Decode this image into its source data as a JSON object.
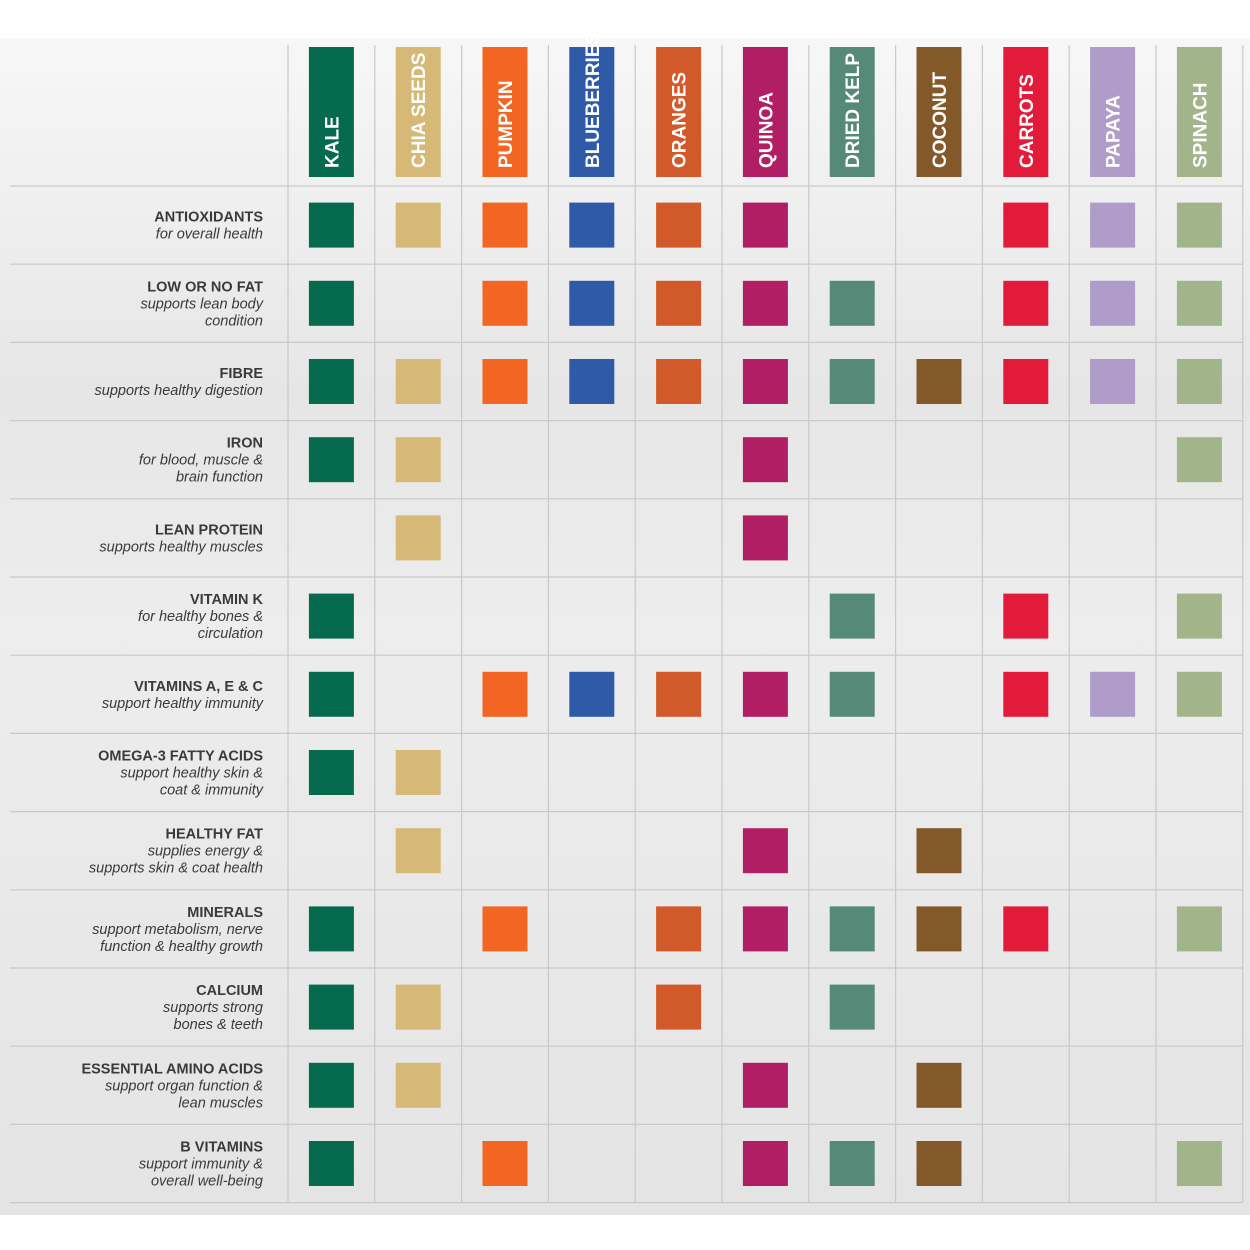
{
  "columns": [
    {
      "name": "KALE",
      "color": "#066b4e"
    },
    {
      "name": "CHIA SEEDS",
      "color": "#d6b877"
    },
    {
      "name": "PUMPKIN",
      "color": "#f26522"
    },
    {
      "name": "BLUEBERRIES",
      "color": "#2e5aa8"
    },
    {
      "name": "ORANGES",
      "color": "#d2592a"
    },
    {
      "name": "QUINOA",
      "color": "#b11e63"
    },
    {
      "name": "DRIED KELP",
      "color": "#568a78"
    },
    {
      "name": "COCONUT",
      "color": "#83592a"
    },
    {
      "name": "CARROTS",
      "color": "#e31b3b"
    },
    {
      "name": "PAPAYA",
      "color": "#b09cc9"
    },
    {
      "name": "SPINACH",
      "color": "#a2b58a"
    }
  ],
  "rows": [
    {
      "title": "ANTIOXIDANTS",
      "subtitle": [
        "for overall health"
      ],
      "cells": [
        true,
        true,
        true,
        true,
        true,
        true,
        false,
        false,
        true,
        true,
        true
      ]
    },
    {
      "title": "LOW OR NO FAT",
      "subtitle": [
        "supports lean body",
        "condition"
      ],
      "cells": [
        true,
        false,
        true,
        true,
        true,
        true,
        true,
        false,
        true,
        true,
        true
      ]
    },
    {
      "title": "FIBRE",
      "subtitle": [
        "supports healthy digestion"
      ],
      "cells": [
        true,
        true,
        true,
        true,
        true,
        true,
        true,
        true,
        true,
        true,
        true
      ]
    },
    {
      "title": "IRON",
      "subtitle": [
        "for blood, muscle &",
        "brain function"
      ],
      "cells": [
        true,
        true,
        false,
        false,
        false,
        true,
        false,
        false,
        false,
        false,
        true
      ]
    },
    {
      "title": "LEAN PROTEIN",
      "subtitle": [
        "supports healthy muscles"
      ],
      "cells": [
        false,
        true,
        false,
        false,
        false,
        true,
        false,
        false,
        false,
        false,
        false
      ]
    },
    {
      "title": "VITAMIN K",
      "subtitle": [
        "for healthy bones &",
        "circulation"
      ],
      "cells": [
        true,
        false,
        false,
        false,
        false,
        false,
        true,
        false,
        true,
        false,
        true
      ]
    },
    {
      "title": "VITAMINS A, E & C",
      "subtitle": [
        "support healthy immunity"
      ],
      "cells": [
        true,
        false,
        true,
        true,
        true,
        true,
        true,
        false,
        true,
        true,
        true
      ]
    },
    {
      "title": "OMEGA-3 FATTY ACIDS",
      "subtitle": [
        "support healthy skin &",
        "coat & immunity"
      ],
      "cells": [
        true,
        true,
        false,
        false,
        false,
        false,
        false,
        false,
        false,
        false,
        false
      ]
    },
    {
      "title": "HEALTHY FAT",
      "subtitle": [
        "supplies energy &",
        "supports skin & coat health"
      ],
      "cells": [
        false,
        true,
        false,
        false,
        false,
        true,
        false,
        true,
        false,
        false,
        false
      ]
    },
    {
      "title": "MINERALS",
      "subtitle": [
        "support metabolism, nerve",
        "function & healthy growth"
      ],
      "cells": [
        true,
        false,
        true,
        false,
        true,
        true,
        true,
        true,
        true,
        false,
        true
      ]
    },
    {
      "title": "CALCIUM",
      "subtitle": [
        "supports strong",
        "bones & teeth"
      ],
      "cells": [
        true,
        true,
        false,
        false,
        true,
        false,
        true,
        false,
        false,
        false,
        false
      ]
    },
    {
      "title": "ESSENTIAL AMINO ACIDS",
      "subtitle": [
        "support organ function &",
        "lean muscles"
      ],
      "cells": [
        true,
        true,
        false,
        false,
        false,
        true,
        false,
        true,
        false,
        false,
        false
      ]
    },
    {
      "title": "B VITAMINS",
      "subtitle": [
        "support immunity &",
        "overall well-being"
      ],
      "cells": [
        true,
        false,
        true,
        false,
        false,
        true,
        true,
        true,
        false,
        false,
        true
      ]
    }
  ]
}
